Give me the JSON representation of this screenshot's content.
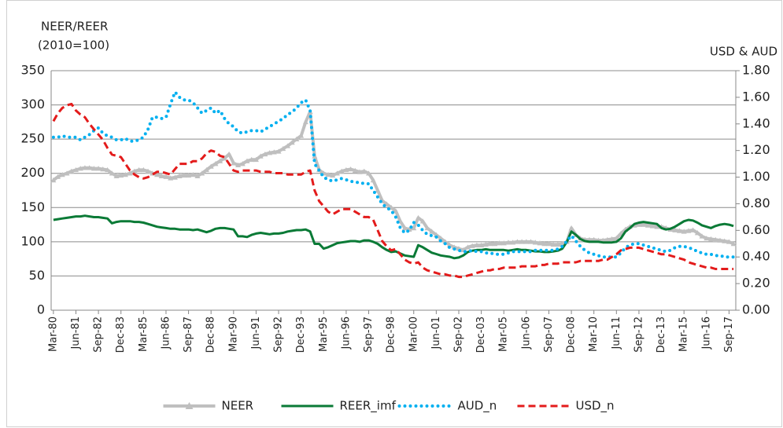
{
  "chart_data": {
    "type": "line",
    "y_label": [
      "NEER/REER",
      "(2010=100)"
    ],
    "y2_label": "USD & AUD",
    "categories": [
      "Mar-80",
      null,
      null,
      null,
      null,
      "Jun-81",
      null,
      null,
      null,
      null,
      "Sep-82",
      null,
      null,
      null,
      null,
      "Dec-83",
      null,
      null,
      null,
      null,
      "Mar-85",
      null,
      null,
      null,
      null,
      "Jun-86",
      null,
      null,
      null,
      null,
      "Sep-87",
      null,
      null,
      null,
      null,
      "Dec-88",
      null,
      null,
      null,
      null,
      "Mar-90",
      null,
      null,
      null,
      null,
      "Jun-91",
      null,
      null,
      null,
      null,
      "Sep-92",
      null,
      null,
      null,
      null,
      "Dec-93",
      null,
      null,
      null,
      null,
      "Mar-95",
      null,
      null,
      null,
      null,
      "Jun-96",
      null,
      null,
      null,
      null,
      "Sep-97",
      null,
      null,
      null,
      null,
      "Dec-98",
      null,
      null,
      null,
      null,
      "Mar-00",
      null,
      null,
      null,
      null,
      "Jun-01",
      null,
      null,
      null,
      null,
      "Sep-02",
      null,
      null,
      null,
      null,
      "Dec-03",
      null,
      null,
      null,
      null,
      "Mar-05",
      null,
      null,
      null,
      null,
      "Jun-06",
      null,
      null,
      null,
      null,
      "Sep-07",
      null,
      null,
      null,
      null,
      "Dec-08",
      null,
      null,
      null,
      null,
      "Mar-10",
      null,
      null,
      null,
      null,
      "Jun-11",
      null,
      null,
      null,
      null,
      "Sep-12",
      null,
      null,
      null,
      null,
      "Dec-13",
      null,
      null,
      null,
      null,
      "Mar-15",
      null,
      null,
      null,
      null,
      "Jun-16",
      null,
      null,
      null,
      null,
      "Sep-17",
      null
    ],
    "series": [
      {
        "name": "NEER",
        "color": "#bfbfbf",
        "style": "solid",
        "marker": "triangle",
        "axis": "y",
        "values": [
          190,
          195,
          198,
          200,
          203,
          205,
          207,
          208,
          208,
          207,
          207,
          206,
          205,
          200,
          196,
          197,
          198,
          200,
          203,
          205,
          205,
          203,
          200,
          198,
          196,
          195,
          193,
          194,
          196,
          197,
          197,
          198,
          196,
          200,
          205,
          210,
          214,
          218,
          222,
          228,
          215,
          212,
          214,
          218,
          220,
          220,
          225,
          228,
          230,
          231,
          232,
          236,
          240,
          245,
          250,
          255,
          275,
          290,
          225,
          205,
          200,
          198,
          197,
          200,
          203,
          205,
          206,
          204,
          202,
          203,
          200,
          190,
          175,
          160,
          155,
          150,
          145,
          130,
          120,
          118,
          120,
          135,
          130,
          120,
          115,
          110,
          105,
          100,
          95,
          92,
          90,
          88,
          92,
          94,
          95,
          95,
          96,
          97,
          97,
          98,
          98,
          99,
          99,
          100,
          100,
          100,
          100,
          99,
          98,
          97,
          97,
          96,
          96,
          97,
          100,
          120,
          110,
          105,
          103,
          103,
          103,
          102,
          102,
          103,
          104,
          105,
          112,
          118,
          122,
          124,
          125,
          125,
          124,
          123,
          122,
          122,
          120,
          118,
          117,
          116,
          115,
          116,
          117,
          113,
          108,
          105,
          104,
          103,
          102,
          101,
          100,
          97
        ]
      },
      {
        "name": "REER_imf",
        "color": "#0a7a36",
        "style": "solid",
        "axis": "y",
        "values": [
          132,
          133,
          134,
          135,
          136,
          137,
          137,
          138,
          137,
          136,
          136,
          135,
          134,
          127,
          129,
          130,
          130,
          130,
          129,
          129,
          128,
          126,
          124,
          122,
          121,
          120,
          119,
          119,
          118,
          118,
          118,
          117,
          118,
          116,
          114,
          116,
          119,
          120,
          120,
          119,
          118,
          108,
          108,
          107,
          110,
          112,
          113,
          112,
          111,
          112,
          112,
          113,
          115,
          116,
          117,
          117,
          118,
          115,
          97,
          97,
          90,
          92,
          95,
          98,
          99,
          100,
          101,
          101,
          100,
          102,
          102,
          100,
          97,
          92,
          88,
          85,
          86,
          83,
          80,
          79,
          78,
          95,
          92,
          88,
          84,
          82,
          80,
          79,
          78,
          76,
          77,
          80,
          85,
          87,
          88,
          88,
          89,
          88,
          88,
          88,
          88,
          87,
          88,
          89,
          88,
          88,
          87,
          86,
          86,
          85,
          85,
          86,
          87,
          90,
          100,
          115,
          110,
          104,
          101,
          100,
          100,
          100,
          99,
          99,
          99,
          100,
          105,
          115,
          120,
          126,
          128,
          129,
          128,
          127,
          126,
          120,
          118,
          119,
          122,
          126,
          130,
          132,
          131,
          128,
          124,
          122,
          120,
          123,
          125,
          126,
          125,
          123
        ]
      },
      {
        "name": "AUD_n",
        "color": "#00b0f0",
        "style": "dotted",
        "axis": "y2",
        "values": [
          1.3,
          1.3,
          1.31,
          1.3,
          1.3,
          1.3,
          1.28,
          1.3,
          1.32,
          1.35,
          1.37,
          1.33,
          1.31,
          1.3,
          1.28,
          1.28,
          1.29,
          1.27,
          1.27,
          1.28,
          1.3,
          1.36,
          1.45,
          1.45,
          1.44,
          1.45,
          1.55,
          1.64,
          1.6,
          1.58,
          1.58,
          1.56,
          1.52,
          1.48,
          1.5,
          1.52,
          1.48,
          1.5,
          1.44,
          1.4,
          1.38,
          1.34,
          1.33,
          1.34,
          1.35,
          1.35,
          1.34,
          1.36,
          1.38,
          1.4,
          1.42,
          1.44,
          1.47,
          1.49,
          1.52,
          1.56,
          1.58,
          1.5,
          1.1,
          1.05,
          1.0,
          0.98,
          0.97,
          0.98,
          0.99,
          0.98,
          0.97,
          0.96,
          0.96,
          0.95,
          0.95,
          0.9,
          0.85,
          0.8,
          0.77,
          0.75,
          0.7,
          0.62,
          0.58,
          0.6,
          0.66,
          0.64,
          0.6,
          0.57,
          0.56,
          0.55,
          0.52,
          0.5,
          0.47,
          0.46,
          0.45,
          0.44,
          0.44,
          0.45,
          0.44,
          0.44,
          0.43,
          0.43,
          0.42,
          0.42,
          0.42,
          0.43,
          0.44,
          0.44,
          0.44,
          0.44,
          0.44,
          0.45,
          0.45,
          0.45,
          0.45,
          0.45,
          0.46,
          0.48,
          0.52,
          0.56,
          0.52,
          0.48,
          0.45,
          0.43,
          0.42,
          0.41,
          0.4,
          0.4,
          0.4,
          0.4,
          0.43,
          0.47,
          0.49,
          0.5,
          0.5,
          0.49,
          0.48,
          0.47,
          0.46,
          0.45,
          0.44,
          0.45,
          0.47,
          0.48,
          0.48,
          0.47,
          0.46,
          0.44,
          0.43,
          0.42,
          0.42,
          0.41,
          0.41,
          0.4,
          0.4,
          0.4
        ]
      },
      {
        "name": "USD_n",
        "color": "#e31b1b",
        "style": "dashed",
        "axis": "y2",
        "values": [
          1.42,
          1.48,
          1.52,
          1.54,
          1.55,
          1.5,
          1.47,
          1.45,
          1.4,
          1.36,
          1.32,
          1.28,
          1.22,
          1.17,
          1.16,
          1.15,
          1.1,
          1.05,
          1.02,
          1.0,
          0.99,
          1.0,
          1.02,
          1.04,
          1.04,
          1.03,
          1.02,
          1.06,
          1.1,
          1.1,
          1.1,
          1.12,
          1.12,
          1.14,
          1.18,
          1.2,
          1.19,
          1.16,
          1.15,
          1.1,
          1.05,
          1.04,
          1.05,
          1.05,
          1.05,
          1.05,
          1.04,
          1.04,
          1.04,
          1.03,
          1.03,
          1.03,
          1.02,
          1.02,
          1.02,
          1.02,
          1.04,
          1.05,
          0.9,
          0.82,
          0.78,
          0.74,
          0.72,
          0.74,
          0.76,
          0.76,
          0.76,
          0.74,
          0.72,
          0.7,
          0.7,
          0.68,
          0.6,
          0.52,
          0.48,
          0.45,
          0.46,
          0.42,
          0.38,
          0.36,
          0.35,
          0.36,
          0.32,
          0.3,
          0.29,
          0.28,
          0.27,
          0.27,
          0.26,
          0.26,
          0.25,
          0.25,
          0.26,
          0.27,
          0.28,
          0.29,
          0.3,
          0.3,
          0.31,
          0.31,
          0.32,
          0.32,
          0.32,
          0.32,
          0.33,
          0.33,
          0.33,
          0.33,
          0.34,
          0.34,
          0.35,
          0.35,
          0.35,
          0.36,
          0.36,
          0.36,
          0.36,
          0.37,
          0.37,
          0.37,
          0.37,
          0.37,
          0.38,
          0.38,
          0.4,
          0.42,
          0.45,
          0.46,
          0.47,
          0.47,
          0.47,
          0.46,
          0.45,
          0.44,
          0.43,
          0.42,
          0.42,
          0.41,
          0.4,
          0.39,
          0.38,
          0.36,
          0.35,
          0.34,
          0.33,
          0.32,
          0.32,
          0.31,
          0.31,
          0.31,
          0.31,
          0.31
        ]
      }
    ],
    "ylim": [
      0,
      350
    ],
    "yticks": [
      0,
      50,
      100,
      150,
      200,
      250,
      300,
      350
    ],
    "y2lim": [
      0,
      1.8
    ],
    "y2ticks": [
      {
        "value": 0,
        "label": "0.00"
      },
      {
        "value": 0.2,
        "label": "0.20"
      },
      {
        "value": 0.4,
        "label": "0.40"
      },
      {
        "value": 0.6,
        "label": "0.60"
      },
      {
        "value": 0.8,
        "label": "0.80"
      },
      {
        "value": 1.0,
        "label": "1.00"
      },
      {
        "value": 1.2,
        "label": "1.20"
      },
      {
        "value": 1.4,
        "label": "1.40"
      },
      {
        "value": 1.6,
        "label": "1.60"
      },
      {
        "value": 1.8,
        "label": "1.80"
      }
    ],
    "grid": true,
    "legend": "bottom"
  }
}
